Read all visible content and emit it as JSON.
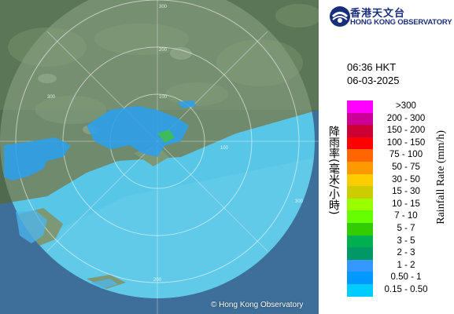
{
  "map": {
    "range_labels": [
      "100",
      "200",
      "300",
      "300",
      "300",
      "200",
      "100"
    ],
    "copyright": "© Hong Kong Observatory"
  },
  "panel": {
    "org_name_zh": "香港天文台",
    "org_name_en": "HONG KONG OBSERVATORY",
    "time": "06:36 HKT",
    "date": "06-03-2025",
    "legend_title_zh": "降雨率(毫米/小時)",
    "legend_title_en": "Rainfall Rate (mm/h)",
    "legend": [
      {
        "label": ">300",
        "color": "#ff00ff"
      },
      {
        "label": "200 - 300",
        "color": "#cc0099"
      },
      {
        "label": "150 - 200",
        "color": "#cc0033"
      },
      {
        "label": "100 - 150",
        "color": "#ff0000"
      },
      {
        "label": "75 - 100",
        "color": "#ff6600"
      },
      {
        "label": "50 - 75",
        "color": "#ff9900"
      },
      {
        "label": "30 - 50",
        "color": "#ffcc00"
      },
      {
        "label": "15 - 30",
        "color": "#cccc00"
      },
      {
        "label": "10 - 15",
        "color": "#99ff00"
      },
      {
        "label": "7 - 10",
        "color": "#66ff00"
      },
      {
        "label": "5 - 7",
        "color": "#33cc00"
      },
      {
        "label": "3 - 5",
        "color": "#00b050"
      },
      {
        "label": "2 - 3",
        "color": "#009966"
      },
      {
        "label": "1 - 2",
        "color": "#3399ff"
      },
      {
        "label": "0.50 - 1",
        "color": "#0099ff"
      },
      {
        "label": "0.15 - 0.50",
        "color": "#00ccff"
      }
    ]
  }
}
